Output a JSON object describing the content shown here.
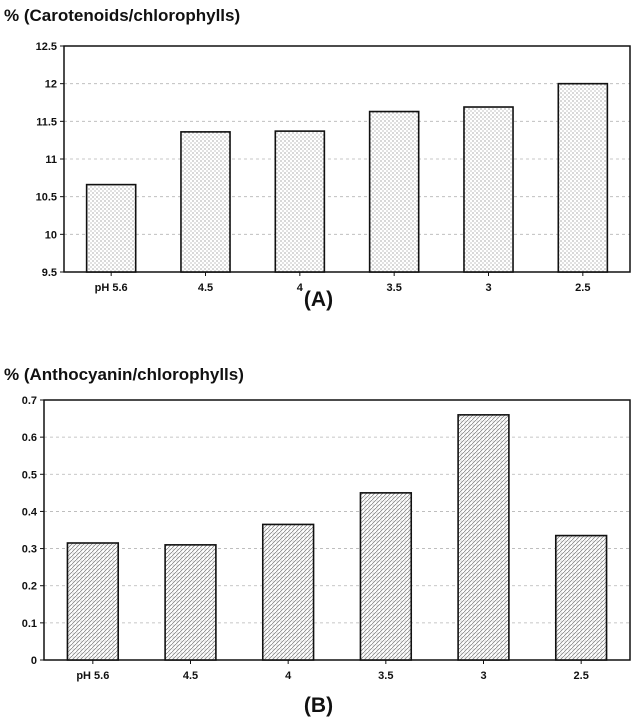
{
  "chart_data": [
    {
      "type": "bar",
      "panel_label": "(A)",
      "ylabel": "% (Carotenoids/chlorophylls)",
      "xlabel": "",
      "categories": [
        "pH 5.6",
        "4.5",
        "4",
        "3.5",
        "3",
        "2.5"
      ],
      "values": [
        10.66,
        11.36,
        11.37,
        11.63,
        11.69,
        12.0
      ],
      "ylim": [
        9.5,
        12.5
      ],
      "yticks": [
        "9.5",
        "10",
        "10.5",
        "11",
        "11.5",
        "12",
        "12.5"
      ],
      "ytick_values": [
        9.5,
        10,
        10.5,
        11,
        11.5,
        12,
        12.5
      ],
      "grid": true,
      "bar_pattern": "dotted"
    },
    {
      "type": "bar",
      "panel_label": "(B)",
      "ylabel": "% (Anthocyanin/chlorophylls)",
      "xlabel": "",
      "categories": [
        "pH 5.6",
        "4.5",
        "4",
        "3.5",
        "3",
        "2.5"
      ],
      "values": [
        0.315,
        0.31,
        0.365,
        0.45,
        0.66,
        0.335
      ],
      "ylim": [
        0,
        0.7
      ],
      "yticks": [
        "0",
        "0.1",
        "0.2",
        "0.3",
        "0.4",
        "0.5",
        "0.6",
        "0.7"
      ],
      "ytick_values": [
        0,
        0.1,
        0.2,
        0.3,
        0.4,
        0.5,
        0.6,
        0.7
      ],
      "grid": true,
      "bar_pattern": "hatched"
    }
  ]
}
